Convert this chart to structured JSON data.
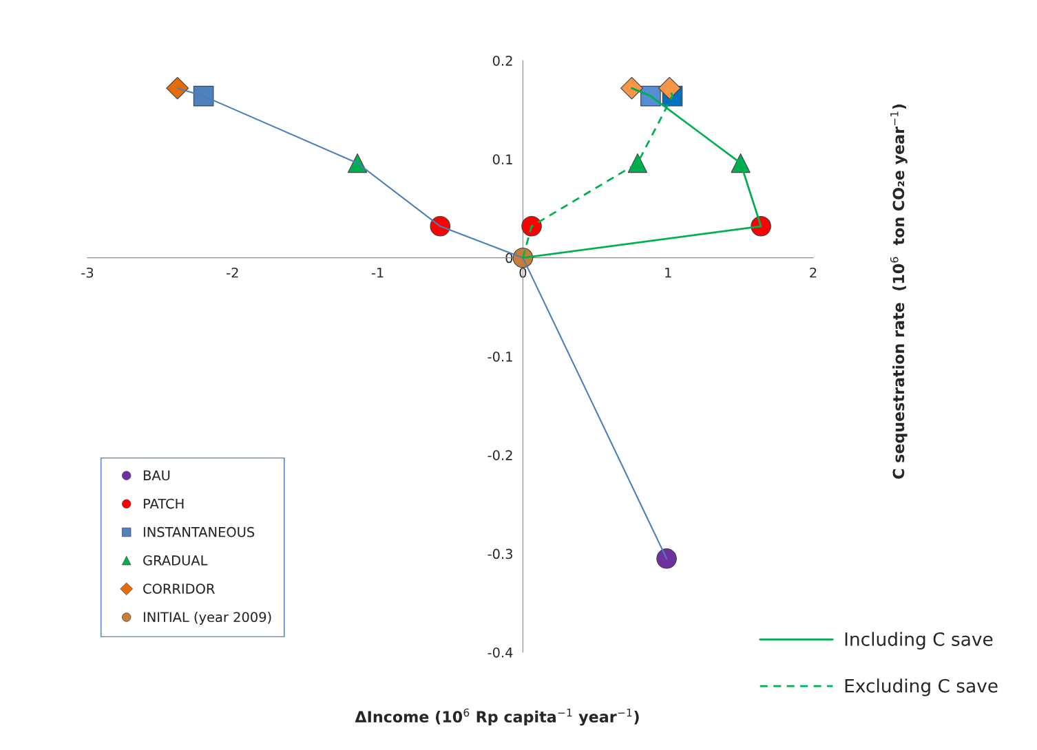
{
  "chart_data": {
    "type": "scatter",
    "xlabel": "ΔIncome (10$^{6}$ Rp capita$^{−1}$ year$^{−1}$)",
    "ylabel": "C sequestration rate  (10$^{6}$  ton CO₂e year$^{−1}$)",
    "xlim": [
      -3,
      2
    ],
    "ylim": [
      -0.4,
      0.2
    ],
    "xticks": [
      -3,
      -2,
      -1,
      0,
      1,
      2
    ],
    "yticks": [
      -0.4,
      -0.3,
      -0.2,
      -0.1,
      0,
      0.1,
      0.2
    ],
    "grid": false,
    "legend": "bottom",
    "series": [
      {
        "type": "line",
        "color": "#4a7ebb",
        "line_style": "solid",
        "x": [
          -2.38,
          -2.2,
          -1.14,
          -0.57,
          0,
          0.99
        ],
        "values": [
          0.172,
          0.164,
          0.096,
          0.032,
          0,
          -0.305
        ]
      },
      {
        "type": "line",
        "name": "Including C save",
        "color": "#00b050",
        "line_style": "solid",
        "x": [
          0,
          1.64,
          1.5,
          0.88,
          0.75
        ],
        "values": [
          0,
          0.032,
          0.096,
          0.164,
          0.172
        ]
      },
      {
        "type": "line",
        "name": "Excluding C save",
        "color": "#00b050",
        "line_style": "dashed",
        "x": [
          0,
          0.06,
          0.79,
          1.03,
          1.01
        ],
        "values": [
          0,
          0.032,
          0.096,
          0.164,
          0.172
        ]
      },
      {
        "name": "BAU",
        "marker": "circle",
        "color": "#7030a0",
        "x": [
          0.99
        ],
        "values": [
          -0.305
        ]
      },
      {
        "name": "PATCH",
        "marker": "circle",
        "color": "#ff0000",
        "x": [
          -0.57,
          1.64,
          0.06
        ],
        "values": [
          0.032,
          0.032,
          0.032
        ]
      },
      {
        "name": "INSTANTANEOUS",
        "marker": "square",
        "color": "#4f81bd",
        "colors": [
          "#4f81bd",
          "#558ed5",
          "#0070c0"
        ],
        "x": [
          -2.2,
          0.88,
          1.03
        ],
        "values": [
          0.164,
          0.164,
          0.164
        ]
      },
      {
        "name": "GRADUAL",
        "marker": "triangle",
        "color": "#00b050",
        "x": [
          -1.14,
          1.5,
          0.79
        ],
        "values": [
          0.096,
          0.096,
          0.096
        ]
      },
      {
        "name": "CORRIDOR",
        "marker": "diamond",
        "color": "#e46c0a",
        "colors": [
          "#e46c0a",
          "#f79646",
          "#f79646"
        ],
        "x": [
          -2.38,
          0.75,
          1.01
        ],
        "values": [
          0.172,
          0.172,
          0.172
        ]
      },
      {
        "name": "INITIAL (year 2009)",
        "marker": "circle",
        "color": "#c77c3a",
        "x": [
          0
        ],
        "values": [
          0
        ]
      }
    ]
  }
}
